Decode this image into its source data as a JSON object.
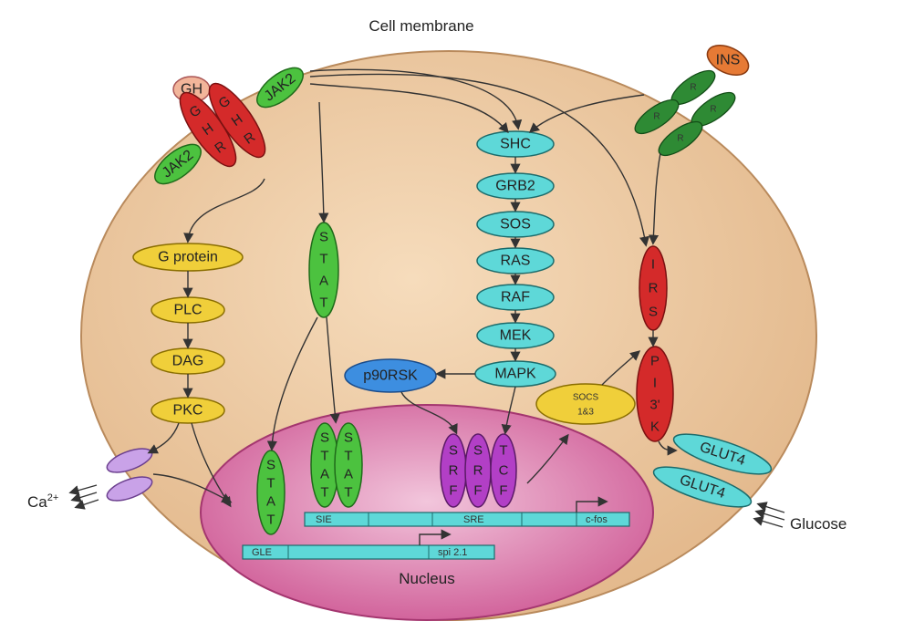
{
  "labels": {
    "membrane": "Cell membrane",
    "nucleus": "Nucleus",
    "calcium_base": "Ca",
    "calcium_sup": "2+",
    "glucose": "Glucose"
  },
  "receptors": {
    "gh": "GH",
    "ghr_left": [
      "G",
      "H",
      "R"
    ],
    "ghr_right": [
      "G",
      "H",
      "R"
    ],
    "jak2_left": "JAK2",
    "jak2_right": "JAK2",
    "ins": "INS",
    "ir_letters": [
      "R",
      "R",
      "R",
      "R"
    ]
  },
  "pathways": {
    "g_chain": [
      "G protein",
      "PLC",
      "DAG",
      "PKC"
    ],
    "stat_cyto": [
      "S",
      "T",
      "A",
      "T"
    ],
    "mapk_chain": [
      "SHC",
      "GRB2",
      "SOS",
      "RAS",
      "RAF",
      "MEK",
      "MAPK"
    ],
    "p90": "p90RSK",
    "irs": [
      "I",
      "R",
      "S"
    ],
    "pi3k": [
      "P",
      "I",
      "3'",
      "K"
    ],
    "socs": [
      "SOCS",
      "1&3"
    ],
    "glut4": [
      "GLUT4",
      "GLUT4"
    ]
  },
  "nucleus_items": {
    "stat_letters": [
      "S",
      "T",
      "A",
      "T"
    ],
    "srf": [
      "S",
      "R",
      "F"
    ],
    "tcf": [
      "T",
      "C",
      "F"
    ],
    "dna_top": [
      "SIE",
      "SRE",
      "c-fos"
    ],
    "dna_bottom": [
      "GLE",
      "spi 2.1"
    ]
  },
  "colors": {
    "cell": "#ecc9a0",
    "nucleus": "#d46aa2",
    "red": "#d42a2a",
    "green": "#3fb63a",
    "darkgreen": "#2e8a34",
    "yellow": "#f0cf3a",
    "cyan": "#5ed8d8",
    "blue": "#3d8ee0",
    "purple": "#b23fc6",
    "orange": "#e67a35"
  }
}
